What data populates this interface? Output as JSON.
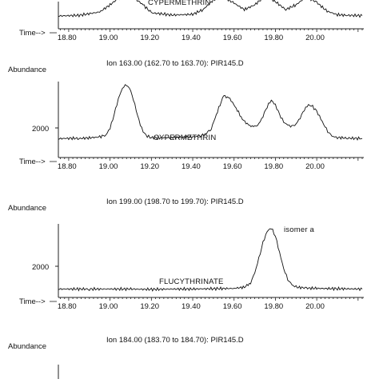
{
  "chart_data": [
    {
      "type": "line",
      "title": "",
      "annotations": [
        "CYPERMETHRIN"
      ],
      "x_label": "Time-->",
      "x_ticks": [
        "18.80",
        "19.00",
        "19.20",
        "19.40",
        "19.60",
        "19.80",
        "20.00"
      ],
      "xlim": [
        18.75,
        20.22
      ],
      "series": [
        {
          "x": [
            18.75,
            18.85,
            18.95,
            19.0,
            19.04,
            19.08,
            19.12,
            19.16,
            19.2,
            19.3,
            19.4,
            19.45,
            19.5,
            19.55,
            19.6,
            19.65,
            19.7,
            19.75,
            19.8,
            19.85,
            19.9,
            19.95,
            20.0,
            20.05,
            20.1,
            20.15,
            20.22
          ],
          "y": [
            1500,
            1540,
            1750,
            2200,
            2600,
            2800,
            2600,
            2200,
            1700,
            1560,
            1600,
            1900,
            2500,
            2700,
            2300,
            1900,
            2200,
            2750,
            2400,
            1900,
            2200,
            2700,
            2350,
            1800,
            1580,
            1540,
            1520
          ]
        }
      ]
    },
    {
      "type": "line",
      "ylabel": "Abundance",
      "subtitle": "Ion 163.00 (162.70 to 163.70): PIR145.D",
      "annotations": [
        "CYPERMETHRIN"
      ],
      "x_label": "Time-->",
      "x_ticks": [
        "18.80",
        "19.00",
        "19.20",
        "19.40",
        "19.60",
        "19.80",
        "20.00"
      ],
      "y_ticks": [
        "2000"
      ],
      "xlim": [
        18.75,
        20.22
      ],
      "ylim": [
        1000,
        3300
      ],
      "series": [
        {
          "x": [
            18.75,
            18.8,
            18.85,
            18.9,
            18.95,
            18.98,
            19.0,
            19.02,
            19.04,
            19.06,
            19.08,
            19.1,
            19.12,
            19.14,
            19.16,
            19.18,
            19.2,
            19.25,
            19.3,
            19.35,
            19.4,
            19.43,
            19.46,
            19.49,
            19.52,
            19.55,
            19.58,
            19.61,
            19.64,
            19.67,
            19.7,
            19.72,
            19.74,
            19.76,
            19.78,
            19.8,
            19.82,
            19.84,
            19.86,
            19.88,
            19.9,
            19.92,
            19.94,
            19.96,
            19.98,
            20.0,
            20.02,
            20.04,
            20.06,
            20.08,
            20.1,
            20.15,
            20.22
          ],
          "y": [
            1420,
            1440,
            1430,
            1450,
            1480,
            1550,
            1750,
            2200,
            2700,
            3050,
            3150,
            2950,
            2500,
            2000,
            1650,
            1500,
            1460,
            1450,
            1460,
            1470,
            1480,
            1500,
            1560,
            1750,
            2300,
            2800,
            2700,
            2400,
            2050,
            1850,
            1800,
            1900,
            2150,
            2450,
            2650,
            2500,
            2200,
            1950,
            1850,
            1820,
            1900,
            2100,
            2350,
            2500,
            2450,
            2300,
            2050,
            1800,
            1600,
            1500,
            1460,
            1440,
            1430
          ]
        }
      ]
    },
    {
      "type": "line",
      "ylabel": "Abundance",
      "subtitle": "Ion 199.00 (198.70 to 199.70): PIR145.D",
      "annotations": [
        "FLUCYTHRINATE",
        "isomer a"
      ],
      "x_label": "Time-->",
      "x_ticks": [
        "18.80",
        "19.00",
        "19.20",
        "19.40",
        "19.60",
        "19.80",
        "20.00"
      ],
      "y_ticks": [
        "2000"
      ],
      "xlim": [
        18.75,
        20.22
      ],
      "ylim": [
        1000,
        3400
      ],
      "series": [
        {
          "x": [
            18.75,
            18.9,
            19.0,
            19.1,
            19.2,
            19.3,
            19.4,
            19.5,
            19.6,
            19.65,
            19.68,
            19.7,
            19.72,
            19.74,
            19.76,
            19.78,
            19.8,
            19.82,
            19.84,
            19.86,
            19.88,
            19.9,
            19.95,
            20.0,
            20.1,
            20.22
          ],
          "y": [
            1260,
            1260,
            1260,
            1260,
            1250,
            1260,
            1260,
            1270,
            1280,
            1320,
            1450,
            1750,
            2200,
            2700,
            3050,
            3150,
            2900,
            2400,
            1900,
            1550,
            1380,
            1320,
            1290,
            1280,
            1270,
            1260
          ]
        }
      ]
    },
    {
      "type": "line",
      "ylabel": "Abundance",
      "subtitle": "Ion 184.00 (183.70 to 184.70): PIR145.D"
    }
  ]
}
